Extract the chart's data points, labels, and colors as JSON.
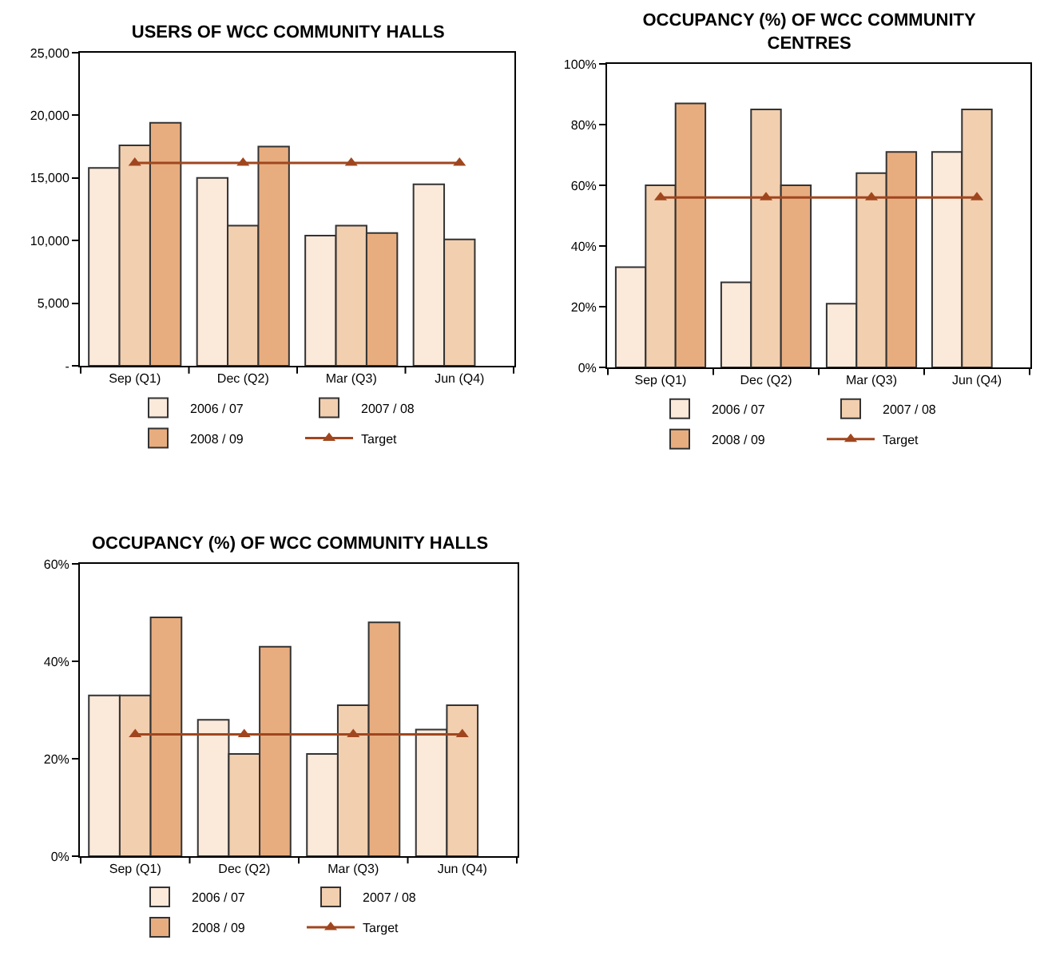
{
  "chart_data": [
    {
      "type": "bar",
      "title": "USERS OF WCC COMMUNITY HALLS",
      "categories": [
        "Sep (Q1)",
        "Dec (Q2)",
        "Mar (Q3)",
        "Jun (Q4)"
      ],
      "ylim": [
        0,
        25000
      ],
      "yticks": [
        {
          "value": 0,
          "label": "-"
        },
        {
          "value": 5000,
          "label": "5,000"
        },
        {
          "value": 10000,
          "label": "10,000"
        },
        {
          "value": 15000,
          "label": "15,000"
        },
        {
          "value": 20000,
          "label": "20,000"
        },
        {
          "value": 25000,
          "label": "25,000"
        }
      ],
      "legend": "bottom",
      "series": [
        {
          "name": "2006 / 07",
          "color": "#fbe9da",
          "values": [
            15800,
            15000,
            10400,
            14500
          ]
        },
        {
          "name": "2007 / 08",
          "color": "#f2cfaf",
          "values": [
            17600,
            11200,
            11200,
            10100
          ]
        },
        {
          "name": "2008 / 09",
          "color": "#e8ad7f",
          "values": [
            19400,
            17500,
            10600,
            null
          ]
        },
        {
          "name": "Target",
          "type": "line",
          "marker": "triangle",
          "color": "#a0461e",
          "values": [
            16200,
            16200,
            16200,
            16200
          ]
        }
      ]
    },
    {
      "type": "bar",
      "title": "OCCUPANCY (%) OF WCC COMMUNITY CENTRES",
      "categories": [
        "Sep (Q1)",
        "Dec (Q2)",
        "Mar (Q3)",
        "Jun (Q4)"
      ],
      "ylim": [
        0,
        100
      ],
      "yticks": [
        {
          "value": 0,
          "label": "0%"
        },
        {
          "value": 20,
          "label": "20%"
        },
        {
          "value": 40,
          "label": "40%"
        },
        {
          "value": 60,
          "label": "60%"
        },
        {
          "value": 80,
          "label": "80%"
        },
        {
          "value": 100,
          "label": "100%"
        }
      ],
      "legend": "bottom",
      "series": [
        {
          "name": "2006 / 07",
          "color": "#fbe9da",
          "values": [
            33,
            28,
            21,
            71
          ]
        },
        {
          "name": "2007 / 08",
          "color": "#f2cfaf",
          "values": [
            60,
            85,
            64,
            85
          ]
        },
        {
          "name": "2008 / 09",
          "color": "#e8ad7f",
          "values": [
            87,
            60,
            71,
            null
          ]
        },
        {
          "name": "Target",
          "type": "line",
          "marker": "triangle",
          "color": "#a0461e",
          "values": [
            56,
            56,
            56,
            56
          ]
        }
      ]
    },
    {
      "type": "bar",
      "title": "OCCUPANCY (%) OF WCC COMMUNITY HALLS",
      "categories": [
        "Sep (Q1)",
        "Dec (Q2)",
        "Mar (Q3)",
        "Jun (Q4)"
      ],
      "ylim": [
        0,
        60
      ],
      "yticks": [
        {
          "value": 0,
          "label": "0%"
        },
        {
          "value": 20,
          "label": "20%"
        },
        {
          "value": 40,
          "label": "40%"
        },
        {
          "value": 60,
          "label": "60%"
        }
      ],
      "legend": "bottom",
      "series": [
        {
          "name": "2006 / 07",
          "color": "#fbe9da",
          "values": [
            33,
            28,
            21,
            26
          ]
        },
        {
          "name": "2007 / 08",
          "color": "#f2cfaf",
          "values": [
            33,
            21,
            31,
            31
          ]
        },
        {
          "name": "2008 / 09",
          "color": "#e8ad7f",
          "values": [
            49,
            43,
            48,
            null
          ]
        },
        {
          "name": "Target",
          "type": "line",
          "marker": "triangle",
          "color": "#a0461e",
          "values": [
            25,
            25,
            25,
            25
          ]
        }
      ]
    }
  ]
}
